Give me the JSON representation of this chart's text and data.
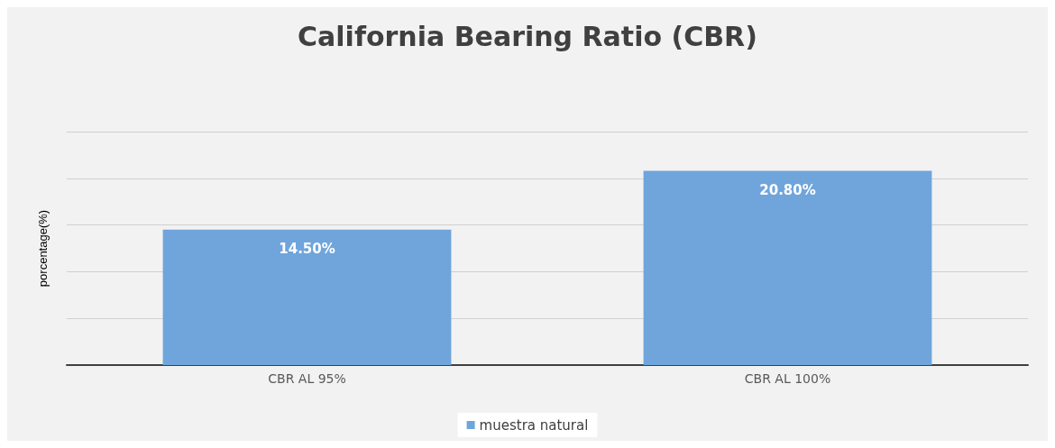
{
  "chart_data": {
    "type": "bar",
    "title": "California Bearing Ratio (CBR)",
    "ylabel": "porcentage(%)",
    "categories": [
      "CBR AL 95%",
      "CBR AL 100%"
    ],
    "series": [
      {
        "name": "muestra natural",
        "color": "#6fa5db",
        "values": [
          14.5,
          20.8
        ],
        "value_labels": [
          "14.50%",
          "20.80%"
        ]
      }
    ],
    "ylim": [
      0,
      25
    ],
    "yticks": [
      {
        "value": 0,
        "label": null
      },
      {
        "value": 5,
        "label": null
      },
      {
        "value": 10,
        "label": null
      },
      {
        "value": 15,
        "label": null
      },
      {
        "value": 20,
        "label": null
      },
      {
        "value": 25,
        "label": null
      }
    ],
    "tick_labels": "x",
    "grid": "y",
    "legend": "bottom"
  }
}
